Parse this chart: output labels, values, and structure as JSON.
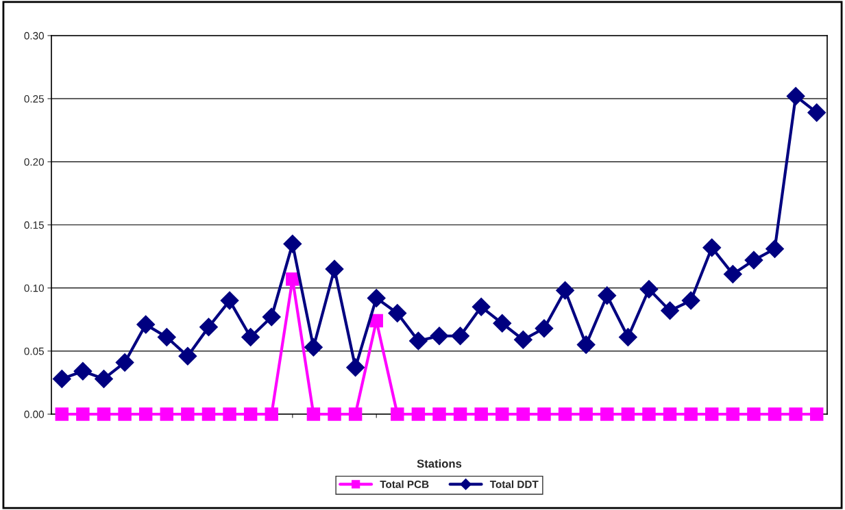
{
  "chart_data": {
    "type": "line",
    "xlabel": "Stations",
    "categories": [
      null,
      null,
      null,
      null,
      null,
      null,
      null,
      null,
      null,
      null,
      null,
      null,
      null,
      null,
      null,
      null,
      null,
      null,
      null,
      null,
      null,
      null,
      null,
      null,
      null,
      null,
      null,
      null,
      null,
      null,
      null,
      null,
      null,
      null,
      null,
      null,
      null
    ],
    "series": [
      {
        "name": "Total PCB",
        "color": "#ff00ff",
        "marker": "square",
        "values": [
          0,
          0,
          0,
          0,
          0,
          0,
          0,
          0,
          0,
          0,
          0,
          0.107,
          0,
          0,
          0,
          0.074,
          0,
          0,
          0,
          0,
          0,
          0,
          0,
          0,
          0,
          0,
          0,
          0,
          0,
          0,
          0,
          0,
          0,
          0,
          0,
          0,
          0
        ]
      },
      {
        "name": "Total DDT",
        "color": "#000080",
        "marker": "diamond",
        "values": [
          0.028,
          0.034,
          0.028,
          0.041,
          0.071,
          0.061,
          0.046,
          0.069,
          0.09,
          0.061,
          0.077,
          0.135,
          0.053,
          0.115,
          0.037,
          0.092,
          0.08,
          0.058,
          0.062,
          0.062,
          0.085,
          0.072,
          0.059,
          0.068,
          0.098,
          0.055,
          0.094,
          0.061,
          0.099,
          0.082,
          0.09,
          0.132,
          0.111,
          0.122,
          0.131,
          0.252,
          0.239
        ]
      }
    ],
    "ylim": [
      0,
      0.3
    ],
    "yticks": [
      {
        "value": 0,
        "label": "0.00"
      },
      {
        "value": 0.05,
        "label": "0.05"
      },
      {
        "value": 0.1,
        "label": "0.10"
      },
      {
        "value": 0.15,
        "label": "0.15"
      },
      {
        "value": 0.2,
        "label": "0.20"
      },
      {
        "value": 0.25,
        "label": "0.25"
      },
      {
        "value": 0.3,
        "label": "0.30"
      }
    ],
    "grid": "y",
    "legend": "bottom"
  }
}
